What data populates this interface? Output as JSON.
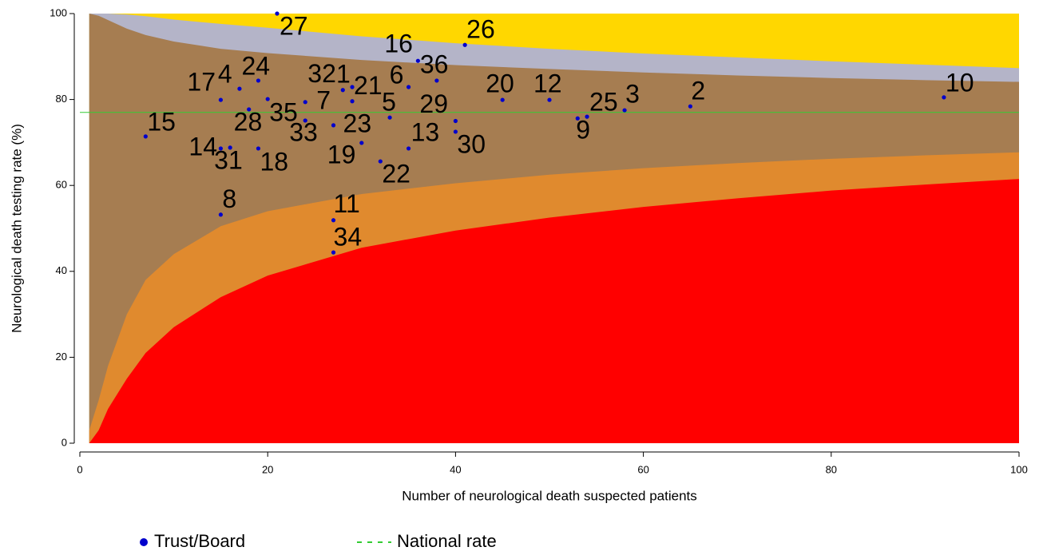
{
  "chart_data": {
    "type": "funnel-scatter",
    "xlabel": "Number of neurological death suspected patients",
    "ylabel": "Neurological death testing rate (%)",
    "xlim": [
      0,
      100
    ],
    "xticks": [
      0,
      20,
      40,
      60,
      80,
      100
    ],
    "ylim": [
      0,
      100
    ],
    "yticks": [
      0,
      20,
      40,
      60,
      80,
      100
    ],
    "series": [
      {
        "name": "Trust/Board",
        "color": "#0000cc",
        "labels": [
          "27",
          "26",
          "16",
          "36",
          "6",
          "32",
          "1",
          "21",
          "24",
          "4",
          "17",
          "20",
          "12",
          "10",
          "2",
          "3",
          "25",
          "9",
          "7",
          "29",
          "30",
          "5",
          "35",
          "28",
          "33",
          "23",
          "15",
          "14",
          "31",
          "18",
          "19",
          "13",
          "22",
          "8",
          "11",
          "34"
        ],
        "x": [
          21,
          41,
          36,
          38,
          35,
          28,
          29,
          29,
          19,
          17,
          15,
          45,
          50,
          92,
          65,
          58,
          54,
          53,
          24,
          40,
          40,
          33,
          20,
          18,
          24,
          27,
          7,
          15,
          16,
          19,
          30,
          35,
          32,
          15,
          27,
          27
        ],
        "values": [
          100,
          92.7,
          89,
          84.4,
          82.9,
          82.2,
          82.9,
          79.6,
          84.4,
          82.5,
          79.9,
          79.9,
          79.9,
          80.5,
          78.4,
          77.5,
          76,
          75.6,
          79.4,
          75,
          72.5,
          75.8,
          80.1,
          77.7,
          75.1,
          74,
          71.4,
          68.6,
          68.8,
          68.6,
          69.9,
          68.6,
          65.6,
          53.2,
          51.9,
          44.4
        ]
      }
    ],
    "national_rate": {
      "name": "National rate",
      "value": 77,
      "color": "#33cc33"
    },
    "limits": {
      "x": [
        1,
        2,
        3,
        5,
        7,
        10,
        15,
        20,
        30,
        40,
        50,
        60,
        70,
        80,
        90,
        100
      ],
      "bands": [
        {
          "color": "#ffd700",
          "values": [
            100,
            100,
            100,
            100,
            100,
            100,
            100,
            100,
            100,
            100,
            100,
            100,
            100,
            100,
            100,
            100
          ]
        },
        {
          "color": "#b4b4c8",
          "values": [
            100,
            100,
            100,
            99.8,
            99.4,
            98.6,
            97.6,
            96.7,
            94.7,
            93.1,
            91.8,
            90.7,
            89.8,
            88.9,
            88.1,
            87.3
          ]
        },
        {
          "color": "#a67d51",
          "values": [
            100,
            99.5,
            98.5,
            96.5,
            95,
            93.5,
            91.8,
            90.8,
            89.2,
            88,
            87.1,
            86.3,
            85.6,
            85,
            84.5,
            84.1
          ]
        },
        {
          "color": "#e08a2e",
          "values": [
            3,
            10,
            18,
            30,
            38,
            44,
            50.5,
            54,
            58,
            60.5,
            62.5,
            64,
            65.2,
            66.2,
            67,
            67.7
          ]
        },
        {
          "color": "#ff0000",
          "values": [
            0,
            3,
            8,
            15,
            21,
            27,
            34,
            39,
            45.5,
            49.5,
            52.5,
            55,
            57,
            58.8,
            60.2,
            61.5
          ]
        }
      ]
    }
  }
}
